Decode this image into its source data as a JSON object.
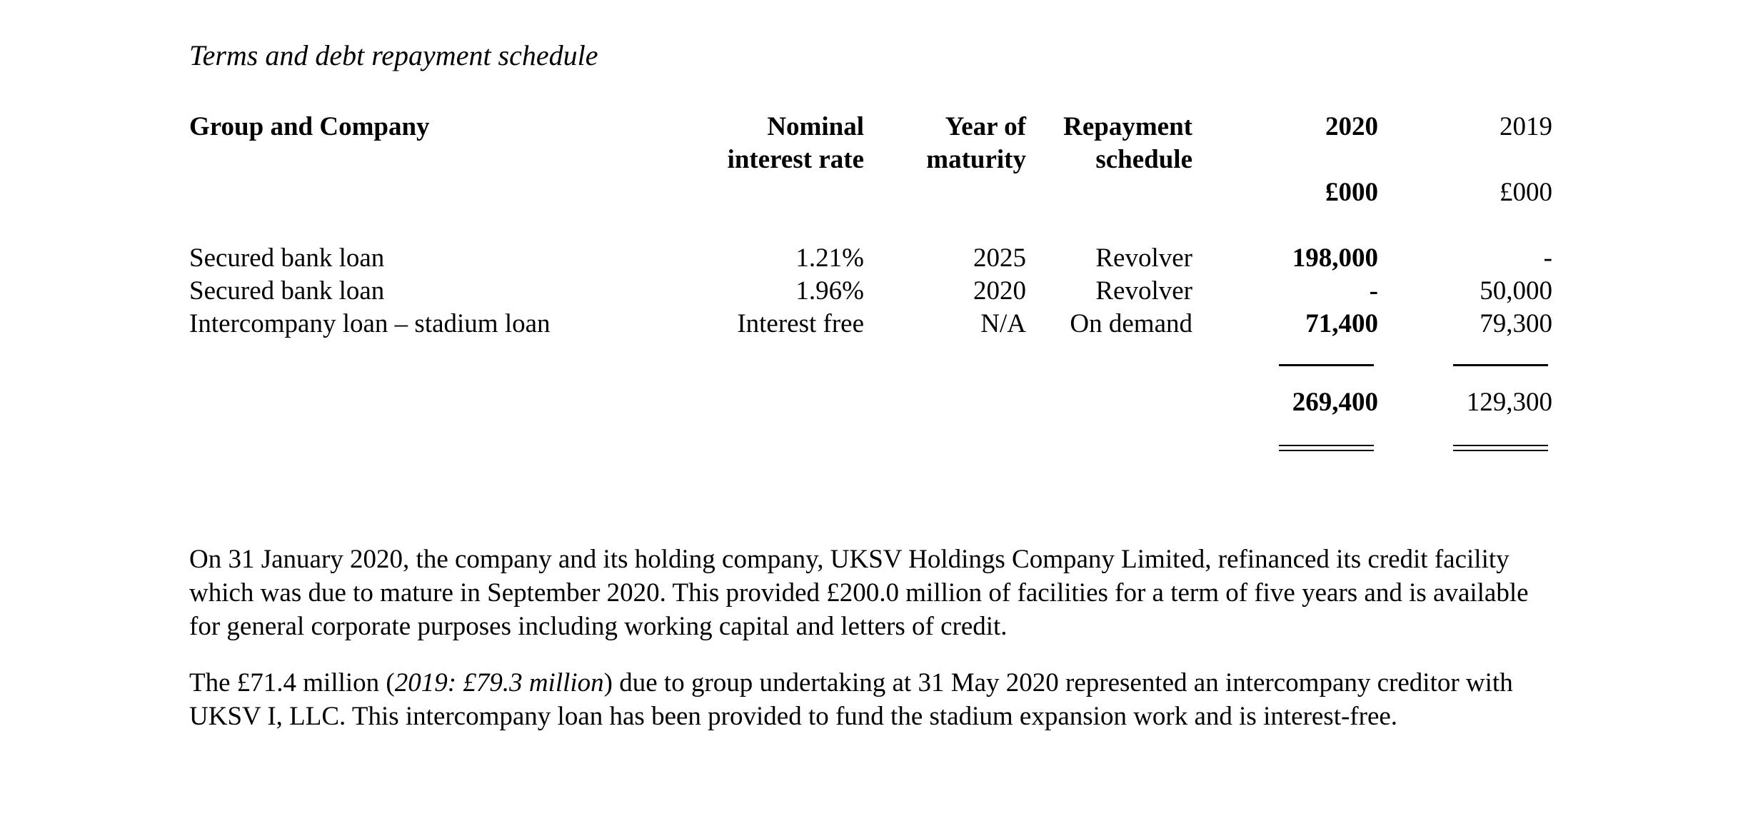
{
  "page": {
    "title": "Terms and debt repayment schedule"
  },
  "table": {
    "headers": {
      "label": "Group and Company",
      "rate_line1": "Nominal",
      "rate_line2": "interest rate",
      "maturity_line1": "Year of",
      "maturity_line2": "maturity",
      "schedule_line1": "Repayment",
      "schedule_line2": "schedule",
      "year_current": "2020",
      "year_prior": "2019",
      "unit_current": "£000",
      "unit_prior": "£000"
    },
    "rows": [
      {
        "label": "Secured bank loan",
        "rate": "1.21%",
        "maturity": "2025",
        "schedule": "Revolver",
        "current": "198,000",
        "prior": "-"
      },
      {
        "label": "Secured bank loan",
        "rate": "1.96%",
        "maturity": "2020",
        "schedule": "Revolver",
        "current": "-",
        "prior": "50,000"
      },
      {
        "label": "Intercompany loan – stadium loan",
        "rate": "Interest free",
        "maturity": "N/A",
        "schedule": "On demand",
        "current": "71,400",
        "prior": "79,300"
      }
    ],
    "totals": {
      "current": "269,400",
      "prior": "129,300"
    }
  },
  "paragraphs": {
    "p1": "On 31 January 2020, the company and its holding company, UKSV Holdings Company Limited, refinanced its credit facility which was due to mature in September 2020. This provided £200.0 million of facilities for a term of five years and is available for general corporate purposes including working capital and letters of credit.",
    "p2_pre": "The £71.4 million (",
    "p2_italic": "2019: £79.3 million",
    "p2_post": ") due to group undertaking at 31 May 2020 represented an intercompany creditor with UKSV I, LLC. This intercompany loan has been provided to fund the stadium expansion work and is interest-free."
  }
}
